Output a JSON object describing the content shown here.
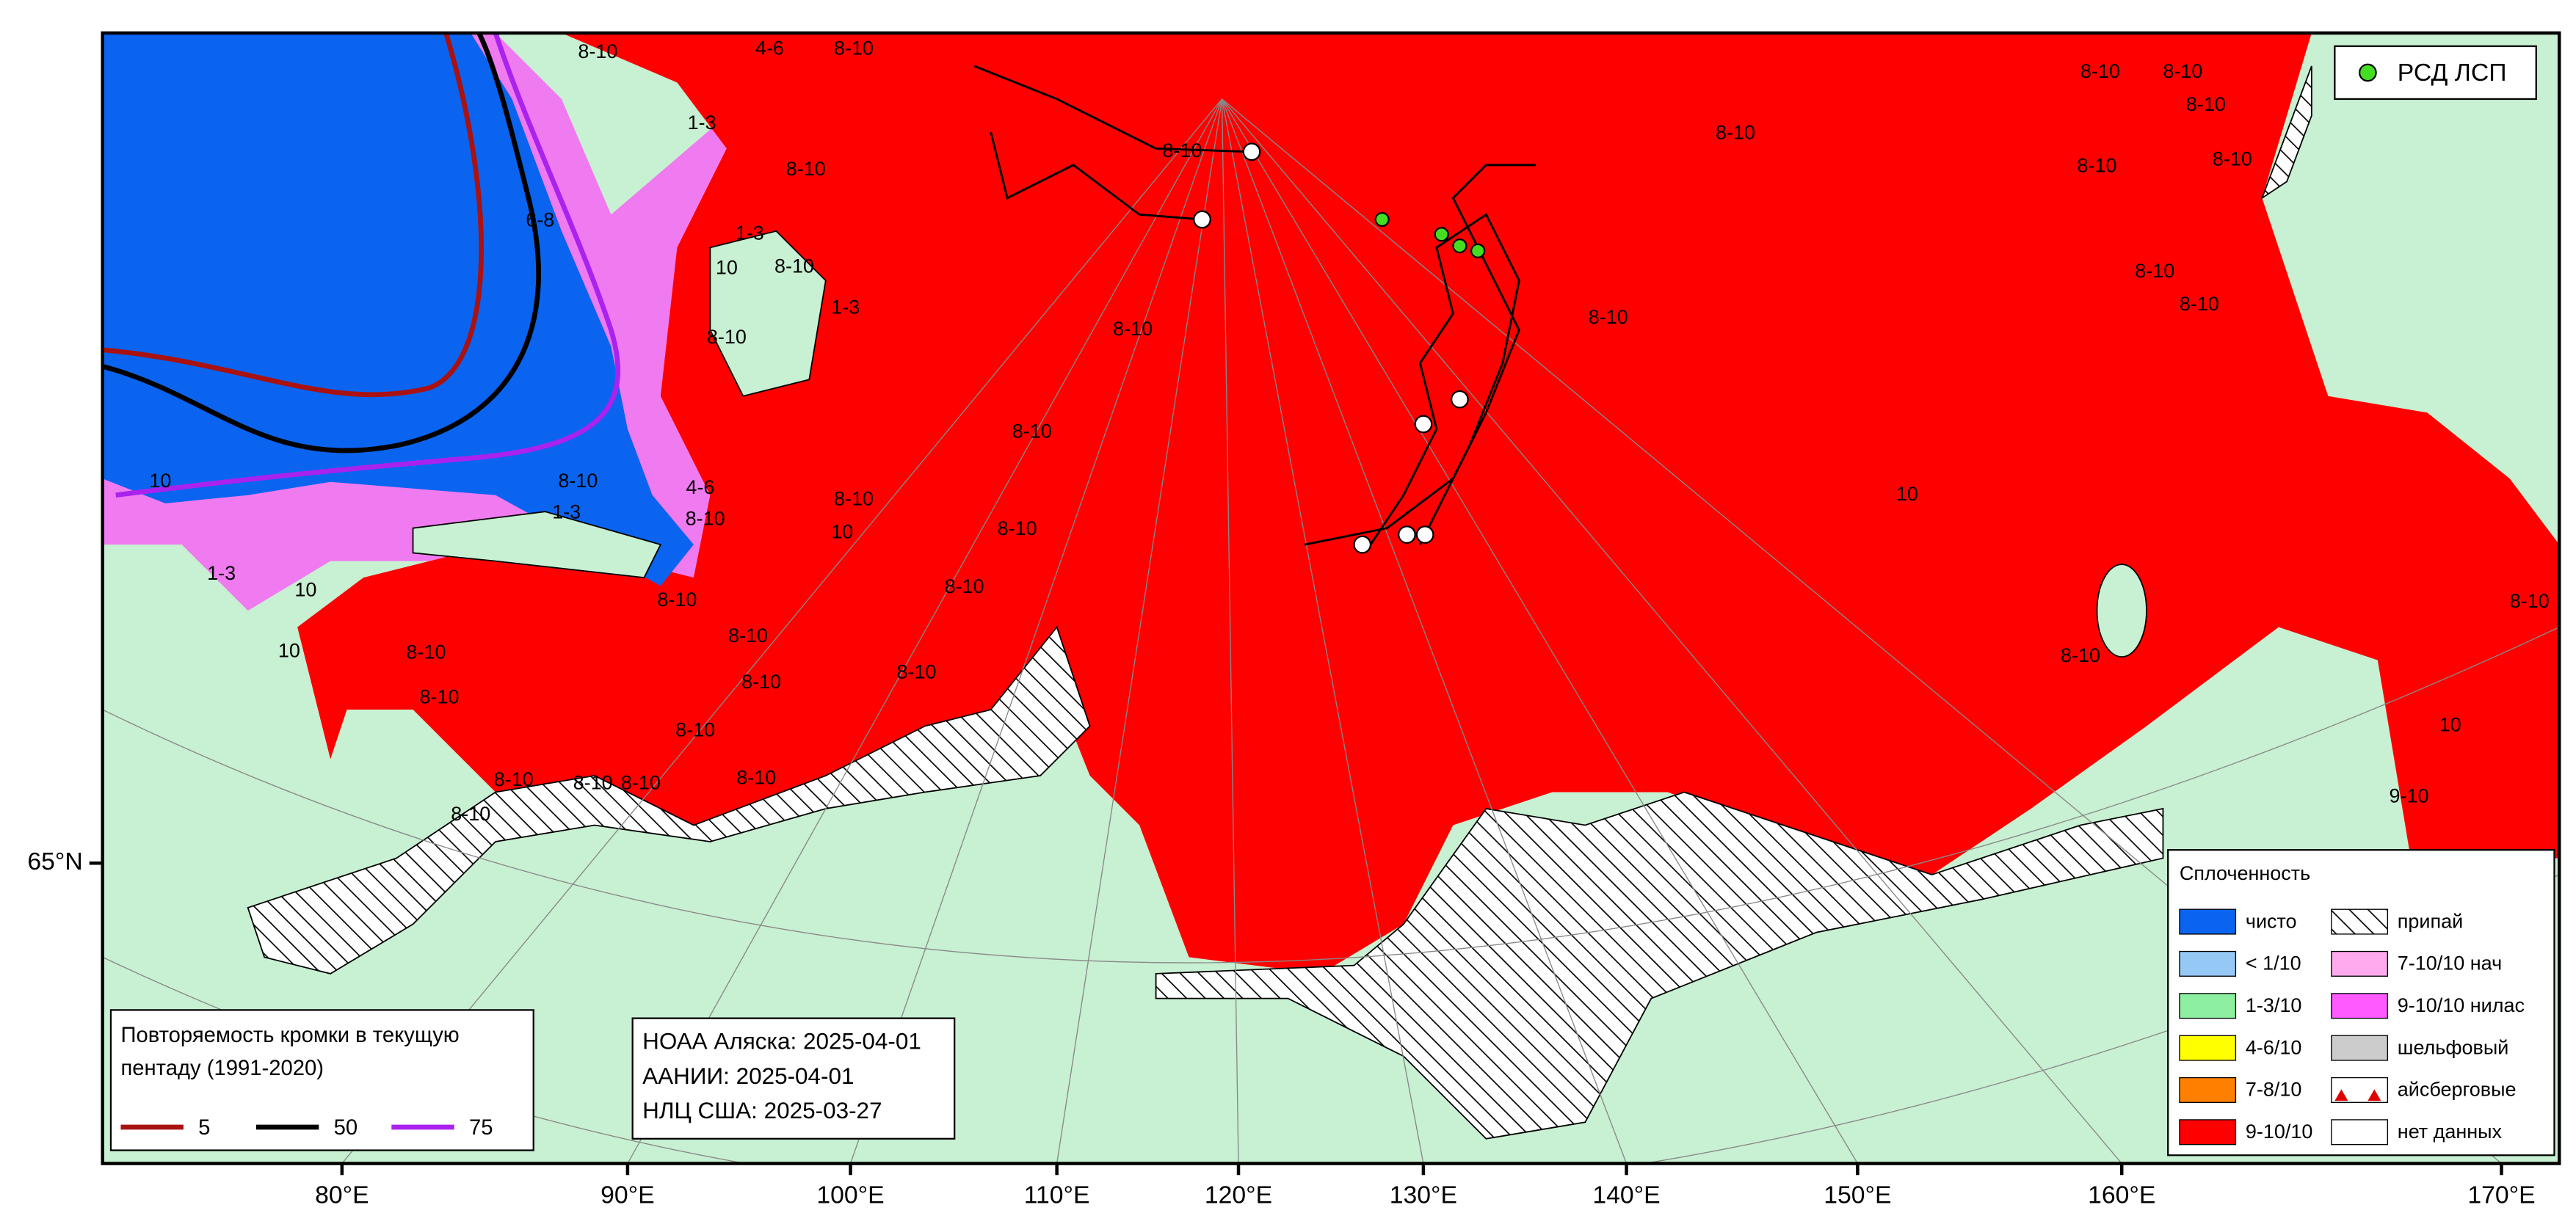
{
  "map": {
    "longitude_labels": [
      "80°E",
      "90°E",
      "100°E",
      "110°E",
      "120°E",
      "130°E",
      "140°E",
      "150°E",
      "160°E",
      "170°E"
    ],
    "latitude_labels": [
      "65°N"
    ],
    "buoy_legend": {
      "label": "РСД ЛСП",
      "color": "#44dd22"
    },
    "edge_legend": {
      "title_lines": [
        "Повторяемость кромки в текущую",
        "пентаду (1991-2020)"
      ],
      "items": [
        {
          "label": "5",
          "color": "#aa1111"
        },
        {
          "label": "50",
          "color": "#000000"
        },
        {
          "label": "75",
          "color": "#aa22ee"
        }
      ]
    },
    "sources": [
      "НОАА Аляска: 2025-04-01",
      "ААНИИ: 2025-04-01",
      "НЛЦ США: 2025-03-27"
    ],
    "concentration_legend": {
      "title": "Сплоченность",
      "items": [
        {
          "label": "чисто",
          "color": "#0a64f0"
        },
        {
          "label": "< 1/10",
          "color": "#96c8f5"
        },
        {
          "label": "1-3/10",
          "color": "#8cf0a0"
        },
        {
          "label": "4-6/10",
          "color": "#ffff00"
        },
        {
          "label": "7-8/10",
          "color": "#ff8000"
        },
        {
          "label": "9-10/10",
          "color": "#ff0000"
        },
        {
          "label": "припай",
          "color": "hatch"
        },
        {
          "label": "7-10/10 нач",
          "color": "#ffaaee"
        },
        {
          "label": "9-10/10 нилас",
          "color": "#ff5aff"
        },
        {
          "label": "шельфовый",
          "color": "#cccccc"
        },
        {
          "label": "айсберговые",
          "color": "iceberg"
        },
        {
          "label": "нет данных",
          "color": "#ffffff"
        }
      ]
    },
    "map_labels": [
      "8-10",
      "4-6",
      "8-10",
      "8-10",
      "1-3",
      "8-10",
      "6-8",
      "1-3",
      "10",
      "8-10",
      "1-3",
      "8-10",
      "8-10",
      "8-10",
      "8-10",
      "8-10",
      "8-10",
      "8-10",
      "8-10",
      "8-10",
      "8-10",
      "4-6",
      "8-10",
      "10",
      "1-3",
      "8-10",
      "8-10",
      "8-10",
      "8-10",
      "8-10",
      "1-3",
      "10",
      "10",
      "10",
      "8-10",
      "8-10",
      "8-10",
      "8-10",
      "8-10",
      "8-10",
      "8-10",
      "8-10",
      "8-10",
      "8-10",
      "8-10",
      "8-10",
      "8-10",
      "10",
      "8-10",
      "9-10",
      "10",
      "8-10"
    ]
  }
}
